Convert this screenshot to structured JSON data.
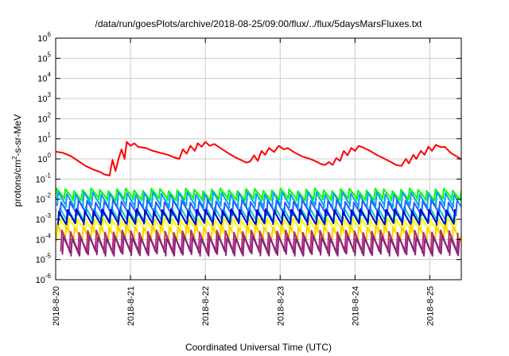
{
  "chart_data": {
    "type": "line",
    "title": "/data/run/goesPlots/archive/2018-08-25/09:00/flux/../flux/5daysMarsFluxes.txt",
    "xlabel": "Coordinated Universal Time (UTC)",
    "ylabel": {
      "base": "protons/cm",
      "exp": "2",
      "rest": "-s-sr-MeV"
    },
    "x_range_days": [
      0,
      5.42
    ],
    "x_ticks": [
      {
        "label": "2018-8-20",
        "day": 0
      },
      {
        "label": "2018-8-21",
        "day": 1
      },
      {
        "label": "2018-8-22",
        "day": 2
      },
      {
        "label": "2018-8-23",
        "day": 3
      },
      {
        "label": "2018-8-24",
        "day": 4
      },
      {
        "label": "2018-8-25",
        "day": 5
      }
    ],
    "y_scale": "log",
    "ylim": [
      1e-06,
      1000000.0
    ],
    "y_ticks": [
      {
        "base": "10",
        "exp": "-6",
        "value": 1e-06
      },
      {
        "base": "10",
        "exp": "-5",
        "value": 1e-05
      },
      {
        "base": "10",
        "exp": "-4",
        "value": 0.0001
      },
      {
        "base": "10",
        "exp": "-3",
        "value": 0.001
      },
      {
        "base": "10",
        "exp": "-2",
        "value": 0.01
      },
      {
        "base": "10",
        "exp": "-1",
        "value": 0.1
      },
      {
        "base": "10",
        "exp": "0",
        "value": 1
      },
      {
        "base": "10",
        "exp": "1",
        "value": 10
      },
      {
        "base": "10",
        "exp": "2",
        "value": 100
      },
      {
        "base": "10",
        "exp": "3",
        "value": 1000
      },
      {
        "base": "10",
        "exp": "4",
        "value": 10000
      },
      {
        "base": "10",
        "exp": "5",
        "value": 100000
      },
      {
        "base": "10",
        "exp": "6",
        "value": 1000000
      }
    ],
    "grid": true,
    "series": [
      {
        "color": "#ff0000",
        "kind": "smooth",
        "points": [
          [
            0.0,
            2.3
          ],
          [
            0.1,
            2.0
          ],
          [
            0.2,
            1.4
          ],
          [
            0.3,
            0.8
          ],
          [
            0.4,
            0.45
          ],
          [
            0.5,
            0.3
          ],
          [
            0.6,
            0.22
          ],
          [
            0.65,
            0.17
          ],
          [
            0.72,
            0.15
          ],
          [
            0.76,
            0.9
          ],
          [
            0.8,
            0.25
          ],
          [
            0.84,
            1.0
          ],
          [
            0.88,
            3.0
          ],
          [
            0.92,
            1.0
          ],
          [
            0.95,
            7.0
          ],
          [
            1.0,
            4.5
          ],
          [
            1.05,
            6.0
          ],
          [
            1.1,
            4.0
          ],
          [
            1.2,
            3.5
          ],
          [
            1.3,
            2.5
          ],
          [
            1.4,
            2.0
          ],
          [
            1.5,
            1.6
          ],
          [
            1.58,
            1.2
          ],
          [
            1.65,
            1.0
          ],
          [
            1.7,
            3.0
          ],
          [
            1.75,
            1.8
          ],
          [
            1.8,
            4.5
          ],
          [
            1.86,
            2.5
          ],
          [
            1.9,
            6.0
          ],
          [
            1.95,
            4.0
          ],
          [
            2.0,
            7.0
          ],
          [
            2.06,
            4.5
          ],
          [
            2.12,
            5.5
          ],
          [
            2.2,
            3.5
          ],
          [
            2.3,
            2.0
          ],
          [
            2.4,
            1.2
          ],
          [
            2.5,
            0.8
          ],
          [
            2.55,
            0.65
          ],
          [
            2.6,
            0.75
          ],
          [
            2.65,
            1.5
          ],
          [
            2.7,
            0.8
          ],
          [
            2.75,
            2.5
          ],
          [
            2.8,
            1.6
          ],
          [
            2.85,
            3.5
          ],
          [
            2.92,
            2.2
          ],
          [
            2.98,
            4.5
          ],
          [
            3.05,
            3.0
          ],
          [
            3.1,
            3.5
          ],
          [
            3.2,
            2.0
          ],
          [
            3.3,
            1.3
          ],
          [
            3.4,
            1.0
          ],
          [
            3.48,
            0.75
          ],
          [
            3.55,
            0.55
          ],
          [
            3.6,
            0.5
          ],
          [
            3.65,
            0.7
          ],
          [
            3.7,
            0.5
          ],
          [
            3.75,
            1.1
          ],
          [
            3.8,
            0.8
          ],
          [
            3.85,
            2.5
          ],
          [
            3.9,
            1.5
          ],
          [
            3.95,
            3.5
          ],
          [
            4.0,
            2.5
          ],
          [
            4.05,
            4.5
          ],
          [
            4.1,
            3.8
          ],
          [
            4.2,
            2.5
          ],
          [
            4.3,
            1.5
          ],
          [
            4.4,
            1.0
          ],
          [
            4.48,
            0.7
          ],
          [
            4.55,
            0.5
          ],
          [
            4.62,
            0.45
          ],
          [
            4.68,
            1.0
          ],
          [
            4.72,
            0.6
          ],
          [
            4.78,
            1.6
          ],
          [
            4.82,
            1.0
          ],
          [
            4.88,
            2.5
          ],
          [
            4.93,
            1.6
          ],
          [
            4.98,
            4.0
          ],
          [
            5.03,
            2.5
          ],
          [
            5.08,
            5.0
          ],
          [
            5.15,
            3.8
          ],
          [
            5.2,
            4.0
          ],
          [
            5.28,
            2.0
          ],
          [
            5.35,
            1.4
          ],
          [
            5.42,
            0.95
          ]
        ]
      },
      {
        "color": "#00ff00",
        "kind": "sawtooth",
        "high": 0.03,
        "low": 0.01,
        "period": 0.115,
        "phase": 0.0
      },
      {
        "color": "#00a0ff",
        "kind": "sawtooth",
        "high": 0.02,
        "low": 0.0045,
        "period": 0.115,
        "phase": 0.02
      },
      {
        "color": "#00d0c0",
        "kind": "sawtooth",
        "high": 0.0035,
        "low": 0.0008,
        "period": 0.115,
        "phase": 0.04
      },
      {
        "color": "#2060ff",
        "kind": "sawtooth",
        "high": 0.008,
        "low": 0.0018,
        "period": 0.115,
        "phase": 0.06
      },
      {
        "color": "#0000cc",
        "kind": "sawtooth",
        "high": 0.0028,
        "low": 0.0006,
        "period": 0.115,
        "phase": 0.03
      },
      {
        "color": "#ffff00",
        "kind": "sawtooth",
        "high": 0.001,
        "low": 0.00025,
        "period": 0.115,
        "phase": 0.05
      },
      {
        "color": "#ffcc00",
        "kind": "sawtooth",
        "high": 0.00045,
        "low": 9e-05,
        "period": 0.115,
        "phase": 0.01
      },
      {
        "color": "#b0306a",
        "kind": "sawtooth",
        "high": 0.00025,
        "low": 2.5e-05,
        "period": 0.115,
        "phase": 0.07
      },
      {
        "color": "#8a2080",
        "kind": "sawtooth",
        "high": 0.00013,
        "low": 1.8e-05,
        "period": 0.115,
        "phase": 0.09
      }
    ]
  }
}
